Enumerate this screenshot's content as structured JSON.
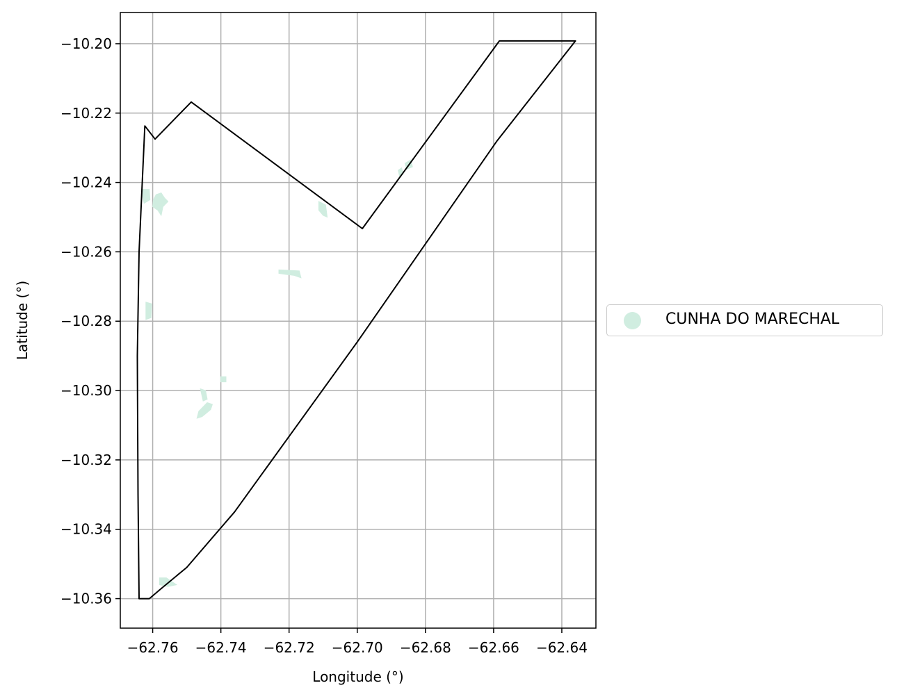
{
  "chart_data": {
    "type": "map",
    "xlabel": "Longitude (°)",
    "ylabel": "Latitude (°)",
    "xlim": [
      -62.7695,
      -62.63
    ],
    "ylim": [
      -10.3685,
      -10.191
    ],
    "x_ticks": [
      -62.76,
      -62.74,
      -62.72,
      -62.7,
      -62.68,
      -62.66,
      -62.64
    ],
    "x_tick_labels": [
      "−62.76",
      "−62.74",
      "−62.72",
      "−62.70",
      "−62.68",
      "−62.66",
      "−62.64"
    ],
    "y_ticks": [
      -10.2,
      -10.22,
      -10.24,
      -10.26,
      -10.28,
      -10.3,
      -10.32,
      -10.34,
      -10.36
    ],
    "y_tick_labels": [
      "−10.20",
      "−10.22",
      "−10.24",
      "−10.26",
      "−10.28",
      "−10.30",
      "−10.32",
      "−10.34",
      "−10.36"
    ],
    "grid": true,
    "boundary": [
      [
        -62.7623,
        -10.2237
      ],
      [
        -62.7593,
        -10.2275
      ],
      [
        -62.7487,
        -10.2168
      ],
      [
        -62.6985,
        -10.2533
      ],
      [
        -62.6583,
        -10.1992
      ],
      [
        -62.636,
        -10.1992
      ],
      [
        -62.659,
        -10.228
      ],
      [
        -62.7,
        -10.286
      ],
      [
        -62.736,
        -10.335
      ],
      [
        -62.75,
        -10.351
      ],
      [
        -62.758,
        -10.3575
      ],
      [
        -62.761,
        -10.36
      ],
      [
        -62.764,
        -10.36
      ],
      [
        -62.7643,
        -10.33
      ],
      [
        -62.7645,
        -10.29
      ],
      [
        -62.764,
        -10.26
      ],
      [
        -62.7623,
        -10.2237
      ]
    ],
    "series": [
      {
        "name": "CUNHA DO MARECHAL",
        "color": "#d0ede0",
        "patches": [
          [
            [
              -62.763,
              -10.242
            ],
            [
              -62.761,
              -10.242
            ],
            [
              -62.7608,
              -10.245
            ],
            [
              -62.7625,
              -10.246
            ],
            [
              -62.763,
              -10.244
            ]
          ],
          [
            [
              -62.759,
              -10.2435
            ],
            [
              -62.7575,
              -10.243
            ],
            [
              -62.7565,
              -10.2445
            ],
            [
              -62.7555,
              -10.2455
            ],
            [
              -62.757,
              -10.247
            ],
            [
              -62.7575,
              -10.2495
            ],
            [
              -62.7585,
              -10.248
            ],
            [
              -62.76,
              -10.247
            ],
            [
              -62.7598,
              -10.245
            ]
          ],
          [
            [
              -62.7113,
              -10.2455
            ],
            [
              -62.7093,
              -10.2465
            ],
            [
              -62.7088,
              -10.25
            ],
            [
              -62.71,
              -10.2495
            ],
            [
              -62.7113,
              -10.248
            ]
          ],
          [
            [
              -62.686,
              -10.2345
            ],
            [
              -62.6843,
              -10.2335
            ],
            [
              -62.6838,
              -10.2355
            ],
            [
              -62.6855,
              -10.2362
            ]
          ],
          [
            [
              -62.688,
              -10.2365
            ],
            [
              -62.687,
              -10.2358
            ],
            [
              -62.6865,
              -10.2375
            ],
            [
              -62.6876,
              -10.2382
            ]
          ],
          [
            [
              -62.723,
              -10.2652
            ],
            [
              -62.717,
              -10.2655
            ],
            [
              -62.7165,
              -10.2675
            ],
            [
              -62.7185,
              -10.2668
            ],
            [
              -62.721,
              -10.2665
            ],
            [
              -62.723,
              -10.2662
            ]
          ],
          [
            [
              -62.762,
              -10.2745
            ],
            [
              -62.7603,
              -10.275
            ],
            [
              -62.7605,
              -10.279
            ],
            [
              -62.762,
              -10.2795
            ]
          ],
          [
            [
              -62.74,
              -10.296
            ],
            [
              -62.7385,
              -10.296
            ],
            [
              -62.7385,
              -10.2975
            ],
            [
              -62.74,
              -10.2975
            ]
          ],
          [
            [
              -62.746,
              -10.2995
            ],
            [
              -62.7445,
              -10.3
            ],
            [
              -62.744,
              -10.3025
            ],
            [
              -62.7452,
              -10.303
            ]
          ],
          [
            [
              -62.744,
              -10.3035
            ],
            [
              -62.7425,
              -10.304
            ],
            [
              -62.743,
              -10.3055
            ],
            [
              -62.7455,
              -10.3075
            ],
            [
              -62.747,
              -10.308
            ],
            [
              -62.7465,
              -10.306
            ]
          ],
          [
            [
              -62.758,
              -10.354
            ],
            [
              -62.756,
              -10.354
            ],
            [
              -62.7545,
              -10.355
            ],
            [
              -62.753,
              -10.356
            ],
            [
              -62.7555,
              -10.3565
            ],
            [
              -62.758,
              -10.356
            ]
          ]
        ]
      }
    ],
    "legend": {
      "placement": "right",
      "entries": [
        "CUNHA DO MARECHAL"
      ]
    }
  },
  "legend": {
    "label": "CUNHA DO MARECHAL",
    "marker_color": "#d0ede0"
  }
}
